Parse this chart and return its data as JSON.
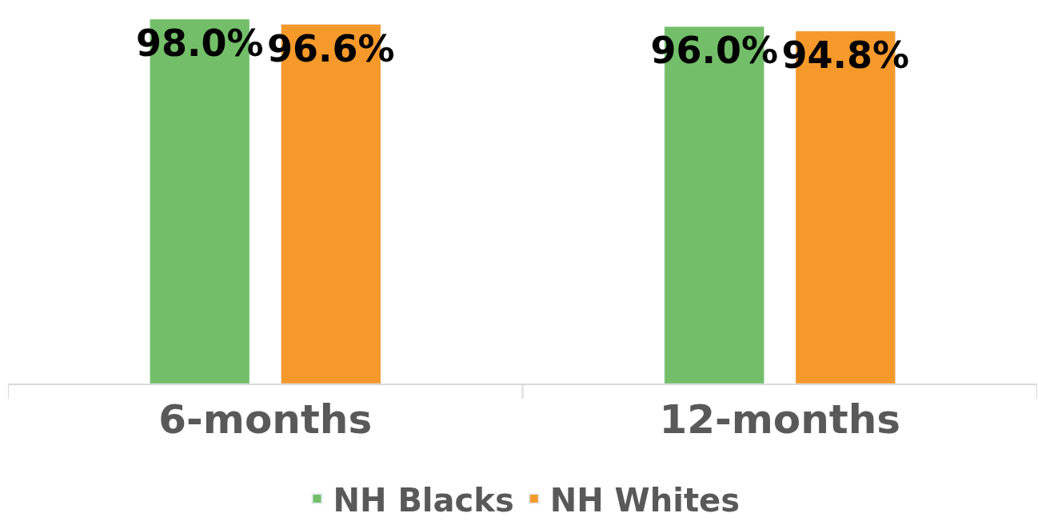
{
  "chart_data": {
    "type": "bar",
    "categories": [
      "6-months",
      "12-months"
    ],
    "series": [
      {
        "name": "NH Blacks",
        "color": "#73bf69",
        "values": [
          98.0,
          96.0
        ],
        "value_labels": [
          "98.0%",
          "96.0%"
        ]
      },
      {
        "name": "NH Whites",
        "color": "#f6992b",
        "values": [
          96.6,
          94.8
        ],
        "value_labels": [
          "96.6%",
          "94.8%"
        ]
      }
    ],
    "tick_labels": "x",
    "legend": "bottom"
  }
}
